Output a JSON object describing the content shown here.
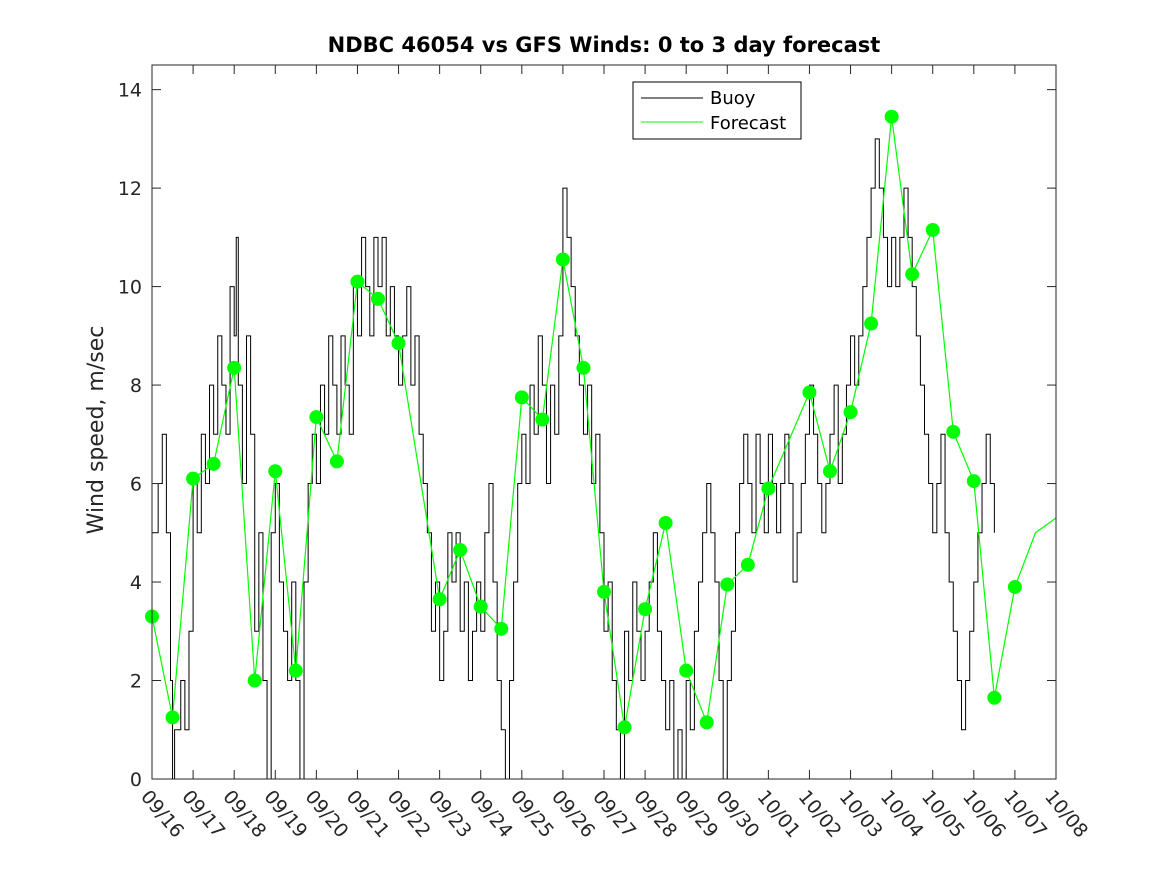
{
  "chart_data": {
    "type": "line",
    "title": "NDBC 46054 vs GFS Winds: 0 to 3 day forecast",
    "xlabel": "",
    "ylabel": "Wind speed, m/sec",
    "x_ticks": [
      "09/16",
      "09/17",
      "09/18",
      "09/19",
      "09/20",
      "09/21",
      "09/22",
      "09/23",
      "09/24",
      "09/25",
      "09/26",
      "09/27",
      "09/28",
      "09/29",
      "09/30",
      "10/01",
      "10/02",
      "10/03",
      "10/04",
      "10/05",
      "10/06",
      "10/07",
      "10/08"
    ],
    "x_range_days": [
      0,
      22
    ],
    "ylim": [
      0,
      14.5
    ],
    "y_ticks": [
      0,
      2,
      4,
      6,
      8,
      10,
      12,
      14
    ],
    "grid": false,
    "legend": {
      "placement": "top-center",
      "entries": [
        "Buoy",
        "Forecast"
      ]
    },
    "colors": {
      "buoy": "#000000",
      "forecast": "#00ff00",
      "axis": "#262626"
    },
    "buoy_series": {
      "name": "Buoy",
      "points": [
        [
          0,
          5
        ],
        [
          0.15,
          6
        ],
        [
          0.25,
          7
        ],
        [
          0.35,
          5
        ],
        [
          0.45,
          2
        ],
        [
          0.5,
          0
        ],
        [
          0.55,
          1
        ],
        [
          0.7,
          2
        ],
        [
          0.8,
          1
        ],
        [
          0.9,
          3
        ],
        [
          1.0,
          6
        ],
        [
          1.1,
          5
        ],
        [
          1.2,
          7
        ],
        [
          1.3,
          6
        ],
        [
          1.4,
          8
        ],
        [
          1.5,
          7
        ],
        [
          1.6,
          9
        ],
        [
          1.7,
          8
        ],
        [
          1.8,
          7
        ],
        [
          1.9,
          10
        ],
        [
          2.0,
          9
        ],
        [
          2.05,
          11
        ],
        [
          2.1,
          8
        ],
        [
          2.2,
          6
        ],
        [
          2.3,
          9
        ],
        [
          2.4,
          7
        ],
        [
          2.5,
          3
        ],
        [
          2.6,
          5
        ],
        [
          2.7,
          2
        ],
        [
          2.8,
          0
        ],
        [
          2.9,
          5
        ],
        [
          3.0,
          6
        ],
        [
          3.1,
          4
        ],
        [
          3.2,
          3
        ],
        [
          3.3,
          2
        ],
        [
          3.4,
          4
        ],
        [
          3.5,
          2
        ],
        [
          3.6,
          0
        ],
        [
          3.7,
          4
        ],
        [
          3.8,
          6
        ],
        [
          3.9,
          7
        ],
        [
          4.0,
          6
        ],
        [
          4.1,
          8
        ],
        [
          4.2,
          7
        ],
        [
          4.3,
          9
        ],
        [
          4.4,
          8
        ],
        [
          4.5,
          7
        ],
        [
          4.6,
          9
        ],
        [
          4.7,
          8
        ],
        [
          4.8,
          7
        ],
        [
          4.9,
          10
        ],
        [
          5.0,
          9
        ],
        [
          5.1,
          11
        ],
        [
          5.2,
          10
        ],
        [
          5.3,
          9
        ],
        [
          5.4,
          11
        ],
        [
          5.5,
          10
        ],
        [
          5.6,
          11
        ],
        [
          5.7,
          9
        ],
        [
          5.8,
          10
        ],
        [
          5.9,
          9
        ],
        [
          6.0,
          8
        ],
        [
          6.1,
          9
        ],
        [
          6.2,
          10
        ],
        [
          6.3,
          8
        ],
        [
          6.4,
          9
        ],
        [
          6.5,
          7
        ],
        [
          6.6,
          6
        ],
        [
          6.7,
          5
        ],
        [
          6.8,
          3
        ],
        [
          6.9,
          4
        ],
        [
          7.0,
          2
        ],
        [
          7.1,
          3
        ],
        [
          7.2,
          5
        ],
        [
          7.3,
          4
        ],
        [
          7.4,
          5
        ],
        [
          7.5,
          3
        ],
        [
          7.6,
          4
        ],
        [
          7.7,
          2
        ],
        [
          7.8,
          3
        ],
        [
          7.9,
          4
        ],
        [
          8.0,
          3
        ],
        [
          8.1,
          5
        ],
        [
          8.2,
          6
        ],
        [
          8.3,
          4
        ],
        [
          8.4,
          2
        ],
        [
          8.5,
          1
        ],
        [
          8.6,
          0
        ],
        [
          8.7,
          2
        ],
        [
          8.8,
          4
        ],
        [
          8.9,
          6
        ],
        [
          9.0,
          7
        ],
        [
          9.1,
          6
        ],
        [
          9.2,
          8
        ],
        [
          9.3,
          7
        ],
        [
          9.4,
          9
        ],
        [
          9.5,
          8
        ],
        [
          9.6,
          6
        ],
        [
          9.7,
          8
        ],
        [
          9.8,
          7
        ],
        [
          9.9,
          9
        ],
        [
          10.0,
          12
        ],
        [
          10.1,
          11
        ],
        [
          10.2,
          10
        ],
        [
          10.3,
          9
        ],
        [
          10.4,
          8
        ],
        [
          10.5,
          7
        ],
        [
          10.6,
          8
        ],
        [
          10.7,
          6
        ],
        [
          10.8,
          7
        ],
        [
          10.9,
          5
        ],
        [
          11.0,
          3
        ],
        [
          11.1,
          4
        ],
        [
          11.2,
          2
        ],
        [
          11.3,
          1
        ],
        [
          11.4,
          0
        ],
        [
          11.5,
          3
        ],
        [
          11.6,
          2
        ],
        [
          11.7,
          4
        ],
        [
          11.8,
          3
        ],
        [
          11.9,
          2
        ],
        [
          12.0,
          3
        ],
        [
          12.1,
          4
        ],
        [
          12.2,
          5
        ],
        [
          12.3,
          3
        ],
        [
          12.4,
          2
        ],
        [
          12.5,
          1
        ],
        [
          12.6,
          2
        ],
        [
          12.7,
          0
        ],
        [
          12.8,
          1
        ],
        [
          12.9,
          0
        ],
        [
          13.0,
          2
        ],
        [
          13.1,
          1
        ],
        [
          13.2,
          3
        ],
        [
          13.3,
          4
        ],
        [
          13.4,
          5
        ],
        [
          13.5,
          6
        ],
        [
          13.6,
          5
        ],
        [
          13.7,
          4
        ],
        [
          13.8,
          2
        ],
        [
          13.9,
          0
        ],
        [
          14.0,
          2
        ],
        [
          14.1,
          3
        ],
        [
          14.2,
          5
        ],
        [
          14.3,
          6
        ],
        [
          14.4,
          7
        ],
        [
          14.5,
          6
        ],
        [
          14.6,
          5
        ],
        [
          14.7,
          7
        ],
        [
          14.8,
          6
        ],
        [
          14.9,
          5
        ],
        [
          15.0,
          7
        ],
        [
          15.1,
          6
        ],
        [
          15.2,
          5
        ],
        [
          15.3,
          6
        ],
        [
          15.4,
          7
        ],
        [
          15.5,
          6
        ],
        [
          15.6,
          4
        ],
        [
          15.7,
          5
        ],
        [
          15.8,
          6
        ],
        [
          15.9,
          7
        ],
        [
          16.0,
          8
        ],
        [
          16.1,
          7
        ],
        [
          16.2,
          6
        ],
        [
          16.3,
          5
        ],
        [
          16.4,
          6
        ],
        [
          16.5,
          7
        ],
        [
          16.6,
          8
        ],
        [
          16.7,
          6
        ],
        [
          16.8,
          7
        ],
        [
          16.9,
          8
        ],
        [
          17.0,
          9
        ],
        [
          17.1,
          8
        ],
        [
          17.2,
          9
        ],
        [
          17.3,
          10
        ],
        [
          17.4,
          11
        ],
        [
          17.5,
          12
        ],
        [
          17.6,
          13
        ],
        [
          17.7,
          12
        ],
        [
          17.8,
          11
        ],
        [
          17.9,
          10
        ],
        [
          18.0,
          11
        ],
        [
          18.1,
          10
        ],
        [
          18.2,
          11
        ],
        [
          18.3,
          12
        ],
        [
          18.4,
          11
        ],
        [
          18.5,
          10
        ],
        [
          18.6,
          9
        ],
        [
          18.7,
          8
        ],
        [
          18.8,
          7
        ],
        [
          18.9,
          6
        ],
        [
          19.0,
          5
        ],
        [
          19.1,
          6
        ],
        [
          19.2,
          7
        ],
        [
          19.3,
          5
        ],
        [
          19.4,
          4
        ],
        [
          19.5,
          3
        ],
        [
          19.6,
          2
        ],
        [
          19.7,
          1
        ],
        [
          19.8,
          2
        ],
        [
          19.9,
          3
        ],
        [
          20.0,
          4
        ],
        [
          20.1,
          5
        ],
        [
          20.2,
          6
        ],
        [
          20.3,
          7
        ],
        [
          20.4,
          6
        ],
        [
          20.5,
          5
        ]
      ]
    },
    "forecast_series": {
      "name": "Forecast",
      "points": [
        [
          0,
          3.3
        ],
        [
          0.5,
          1.25
        ],
        [
          1.0,
          6.1
        ],
        [
          1.5,
          6.4
        ],
        [
          2.0,
          8.35
        ],
        [
          2.5,
          2.0
        ],
        [
          3.0,
          6.25
        ],
        [
          3.5,
          2.2
        ],
        [
          4.0,
          7.35
        ],
        [
          4.5,
          6.45
        ],
        [
          5.0,
          10.1
        ],
        [
          5.5,
          9.75
        ],
        [
          6.0,
          8.85
        ],
        [
          7.0,
          3.65
        ],
        [
          7.5,
          4.65
        ],
        [
          8.0,
          3.5
        ],
        [
          8.5,
          3.05
        ],
        [
          9.0,
          7.75
        ],
        [
          9.5,
          7.3
        ],
        [
          10.0,
          10.55
        ],
        [
          10.5,
          8.35
        ],
        [
          11.0,
          3.8
        ],
        [
          11.5,
          1.05
        ],
        [
          12.0,
          3.45
        ],
        [
          12.5,
          5.2
        ],
        [
          13.0,
          2.2
        ],
        [
          13.5,
          1.15
        ],
        [
          14.0,
          3.95
        ],
        [
          14.5,
          4.35
        ],
        [
          15.0,
          5.9
        ],
        [
          16.0,
          7.85
        ],
        [
          16.5,
          6.25
        ],
        [
          17.0,
          7.45
        ],
        [
          17.5,
          9.25
        ],
        [
          18.0,
          13.45
        ],
        [
          18.5,
          10.25
        ],
        [
          19.0,
          11.15
        ],
        [
          19.5,
          7.05
        ],
        [
          20.0,
          6.05
        ],
        [
          20.5,
          1.65
        ],
        [
          21.0,
          3.9
        ],
        [
          21.5,
          5.0
        ],
        [
          22.0,
          5.3
        ]
      ]
    },
    "forecast_markers": [
      [
        0,
        3.3
      ],
      [
        0.5,
        1.25
      ],
      [
        1.0,
        6.1
      ],
      [
        1.5,
        6.4
      ],
      [
        2.0,
        8.35
      ],
      [
        2.5,
        2.0
      ],
      [
        3.0,
        6.25
      ],
      [
        3.5,
        2.2
      ],
      [
        4.0,
        7.35
      ],
      [
        4.5,
        6.45
      ],
      [
        5.0,
        10.1
      ],
      [
        5.5,
        9.75
      ],
      [
        6.0,
        8.85
      ],
      [
        7.0,
        3.65
      ],
      [
        7.5,
        4.65
      ],
      [
        8.0,
        3.5
      ],
      [
        8.5,
        3.05
      ],
      [
        9.0,
        7.75
      ],
      [
        9.5,
        7.3
      ],
      [
        10.0,
        10.55
      ],
      [
        10.5,
        8.35
      ],
      [
        11.0,
        3.8
      ],
      [
        11.5,
        1.05
      ],
      [
        12.0,
        3.45
      ],
      [
        12.5,
        5.2
      ],
      [
        13.0,
        2.2
      ],
      [
        13.5,
        1.15
      ],
      [
        14.0,
        3.95
      ],
      [
        14.5,
        4.35
      ],
      [
        15.0,
        5.9
      ],
      [
        16.0,
        7.85
      ],
      [
        16.5,
        6.25
      ],
      [
        17.0,
        7.45
      ],
      [
        17.5,
        9.25
      ],
      [
        18.0,
        13.45
      ],
      [
        18.5,
        10.25
      ],
      [
        19.0,
        11.15
      ],
      [
        19.5,
        7.05
      ],
      [
        20.0,
        6.05
      ],
      [
        20.5,
        1.65
      ],
      [
        21.0,
        3.9
      ]
    ]
  }
}
